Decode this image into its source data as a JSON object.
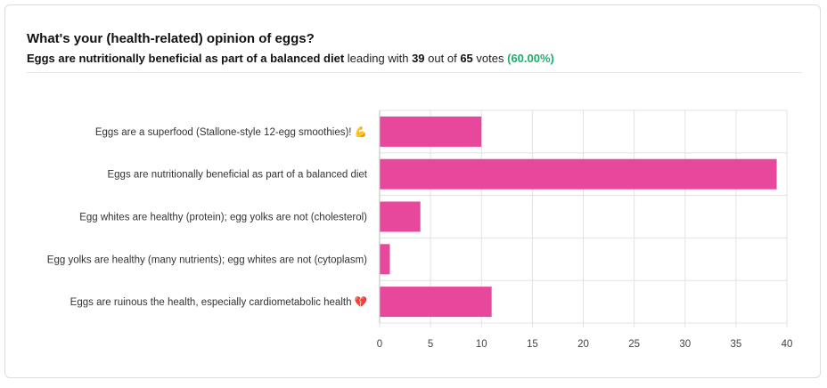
{
  "poll": {
    "question": "What's your (health-related) opinion of eggs?",
    "leader": "Eggs are nutritionally beneficial as part of a balanced diet",
    "leading_with": "leading with",
    "leader_votes": "39",
    "out_of": "out of",
    "total_votes": "65",
    "votes_word": "votes",
    "leader_pct": "(60.00%)"
  },
  "colors": {
    "bar": "#e8489b",
    "grid": "#e3e3e3",
    "accent_green": "#1fae6b"
  },
  "chart_data": {
    "type": "bar",
    "orientation": "horizontal",
    "categories": [
      "Eggs are a superfood (Stallone-style 12-egg smoothies)! 💪",
      "Eggs are nutritionally beneficial as part of a balanced diet",
      "Egg whites are healthy (protein); egg yolks are not (cholesterol)",
      "Egg yolks are healthy (many nutrients); egg whites are not (cytoplasm)",
      "Eggs are ruinous the health, especially cardiometabolic health 💔"
    ],
    "values": [
      10,
      39,
      4,
      1,
      11
    ],
    "xlim": [
      0,
      40
    ],
    "xticks": [
      0,
      5,
      10,
      15,
      20,
      25,
      30,
      35,
      40
    ],
    "grid": true
  }
}
